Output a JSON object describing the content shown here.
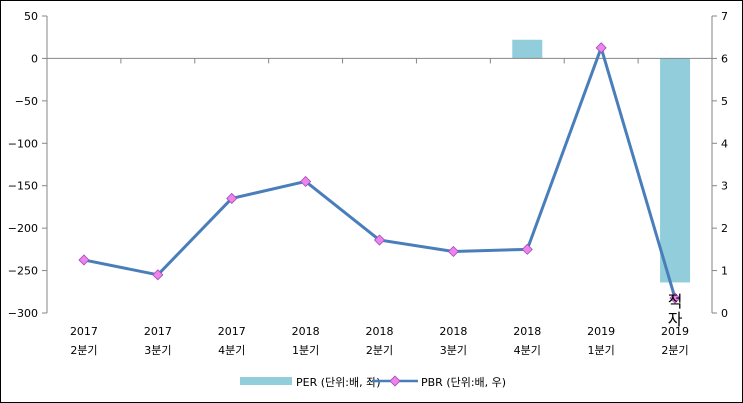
{
  "chart_data": {
    "type": "bar+line",
    "x_labels": [
      [
        "2017",
        "2분기"
      ],
      [
        "2017",
        "3분기"
      ],
      [
        "2017",
        "4분기"
      ],
      [
        "2018",
        "1분기"
      ],
      [
        "2018",
        "2분기"
      ],
      [
        "2018",
        "3분기"
      ],
      [
        "2018",
        "4분기"
      ],
      [
        "2019",
        "1분기"
      ],
      [
        "2019",
        "2분기"
      ]
    ],
    "series": [
      {
        "name": "PER (단위:배, 좌)",
        "type": "bar",
        "axis": "left",
        "color": "#92CDDC",
        "values": [
          null,
          null,
          null,
          null,
          null,
          null,
          22,
          null,
          -264
        ]
      },
      {
        "name": "PBR (단위:배, 우)",
        "type": "line",
        "axis": "right",
        "line_color": "#4A7EBB",
        "marker_color": "#EE82EE",
        "values": [
          1.25,
          0.9,
          2.7,
          3.1,
          1.72,
          1.45,
          1.5,
          6.25,
          0.35
        ]
      }
    ],
    "y_left": {
      "min": -300,
      "max": 50,
      "ticks": [
        50,
        0,
        -50,
        -100,
        -150,
        -200,
        -250,
        -300
      ]
    },
    "y_right": {
      "min": 0,
      "max": 7,
      "ticks": [
        7,
        6,
        5,
        4,
        3,
        2,
        1,
        0
      ]
    },
    "annotations": [
      {
        "text": "적자",
        "index": 8
      }
    ],
    "legend_position": "bottom",
    "grid": false
  }
}
